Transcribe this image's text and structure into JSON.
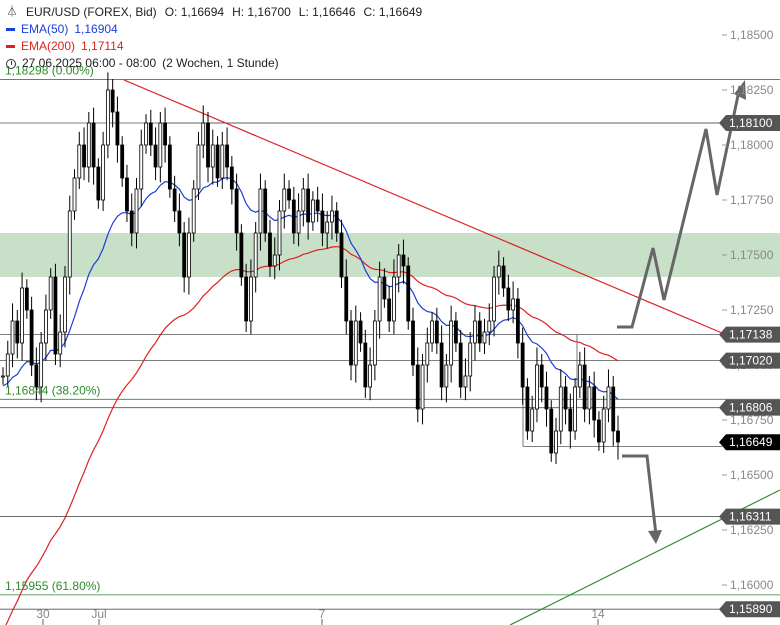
{
  "legend": {
    "symbol": "EUR/USD (FOREX, Bid)",
    "open": "O: 1,16694",
    "high": "H: 1,16700",
    "low": "L: 1,16646",
    "close": "C: 1,16649",
    "ema50_label": "EMA(50)",
    "ema50_value": "1,16904",
    "ema200_label": "EMA(200)",
    "ema200_value": "1,17114",
    "period": "27.06.2025 06:00 - 08:00",
    "timeframe": "(2 Wochen, 1 Stunde)"
  },
  "colors": {
    "candles": "#000000",
    "ema50": "#1a3fd6",
    "ema200": "#e02020",
    "trendline_down": "#e02020",
    "trendline_up": "#2f8a2f",
    "zone": "#a9cfa9",
    "fib_text": "#2f8a2f",
    "arrow": "#666666",
    "price_tag_bg": "#555555",
    "current_tag_bg": "#000000"
  },
  "chart_data": {
    "type": "candlestick",
    "instrument": "EUR/USD",
    "timeframe": "1 Stunde",
    "ylim": [
      1.1579,
      1.1859
    ],
    "x_ticks": [
      "30",
      "Jul",
      "7",
      "14"
    ],
    "y_ticks": [
      "1,18500",
      "1,18250",
      "1,18000",
      "1,17750",
      "1,17500",
      "1,17250",
      "1,17000",
      "1,16750",
      "1,16500",
      "1,16250",
      "1,16000"
    ],
    "price_tags": [
      {
        "value": 1.181,
        "label": "1,18100"
      },
      {
        "value": 1.17138,
        "label": "1,17138"
      },
      {
        "value": 1.1702,
        "label": "1,17020"
      },
      {
        "value": 1.16806,
        "label": "1,16806"
      },
      {
        "value": 1.16649,
        "label": "1,16649",
        "current": true
      },
      {
        "value": 1.16311,
        "label": "1,16311"
      },
      {
        "value": 1.1589,
        "label": "1,15890"
      }
    ],
    "fib_levels": [
      {
        "value": 1.18298,
        "label": "1,18298 (0.00%)"
      },
      {
        "value": 1.16844,
        "label": "1,16844 (38.20%)"
      },
      {
        "value": 1.15955,
        "label": "1,15955 (61.80%)"
      }
    ],
    "resistance_zone": [
      1.1745,
      1.1755
    ],
    "close_series": [
      1.1695,
      1.1705,
      1.172,
      1.171,
      1.1735,
      1.1725,
      1.17,
      1.169,
      1.171,
      1.1725,
      1.174,
      1.1705,
      1.1715,
      1.174,
      1.177,
      1.1785,
      1.18,
      1.179,
      1.181,
      1.179,
      1.1775,
      1.18,
      1.1825,
      1.1815,
      1.18,
      1.1785,
      1.177,
      1.176,
      1.178,
      1.18,
      1.181,
      1.18,
      1.179,
      1.181,
      1.18,
      1.178,
      1.177,
      1.176,
      1.174,
      1.176,
      1.178,
      1.18,
      1.181,
      1.179,
      1.18,
      1.1785,
      1.18,
      1.179,
      1.178,
      1.176,
      1.174,
      1.172,
      1.174,
      1.176,
      1.178,
      1.176,
      1.1745,
      1.175,
      1.177,
      1.178,
      1.1775,
      1.176,
      1.177,
      1.178,
      1.1765,
      1.1775,
      1.177,
      1.176,
      1.1765,
      1.177,
      1.176,
      1.174,
      1.172,
      1.17,
      1.172,
      1.171,
      1.169,
      1.17,
      1.172,
      1.174,
      1.173,
      1.172,
      1.174,
      1.175,
      1.1745,
      1.172,
      1.17,
      1.168,
      1.17,
      1.171,
      1.172,
      1.171,
      1.169,
      1.17,
      1.172,
      1.171,
      1.169,
      1.1695,
      1.171,
      1.172,
      1.171,
      1.1715,
      1.172,
      1.174,
      1.1745,
      1.1735,
      1.1725,
      1.173,
      1.171,
      1.169,
      1.167,
      1.168,
      1.17,
      1.169,
      1.168,
      1.166,
      1.167,
      1.169,
      1.168,
      1.167,
      1.169,
      1.17,
      1.168,
      1.169,
      1.1675,
      1.1665,
      1.168,
      1.169,
      1.167,
      1.1665
    ]
  }
}
